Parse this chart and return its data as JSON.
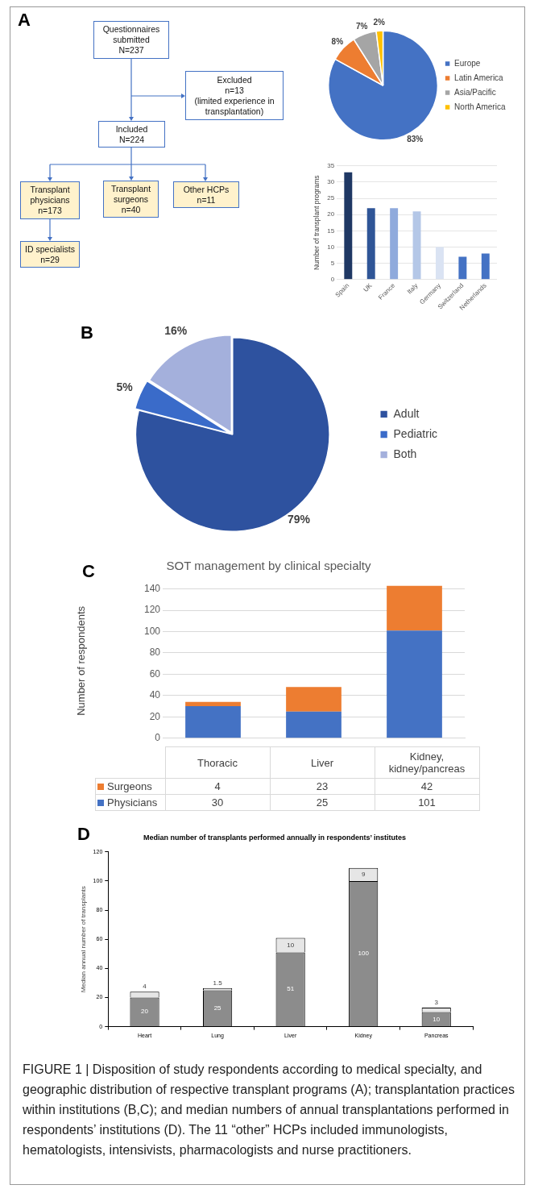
{
  "chart_data": [
    {
      "type": "other",
      "annotations": [
        "A",
        "Questionnaires\nsubmitted\nN=237",
        "Excluded\nn=13\n(limited experience in\ntransplantation)",
        "Included\nN=224",
        "Transplant\nphysicians\nn=173",
        "Transplant\nsurgeons\nn=40",
        "Other HCPs\nn=11",
        "ID specialists\nn=29"
      ]
    },
    {
      "type": "pie",
      "categories": [
        "Europe",
        "Latin America",
        "Asia/Pacific",
        "North America"
      ],
      "values": [
        83,
        8,
        7,
        2
      ],
      "colors": [
        "#4472c4",
        "#ed7d31",
        "#a5a5a5",
        "#ffc000"
      ],
      "value_labels": [
        "83%",
        "8%",
        "7%",
        "2%"
      ],
      "legend": "right"
    },
    {
      "type": "bar",
      "categories": [
        "Spain",
        "UK",
        "France",
        "Italy",
        "Germany",
        "Switzerland",
        "Netherlands"
      ],
      "values": [
        33,
        22,
        22,
        21,
        10,
        7,
        8
      ],
      "colors": [
        "#1f3864",
        "#2f5597",
        "#8faadc",
        "#b4c7e7",
        "#dae3f3",
        "#4472c4",
        "#4472c4"
      ],
      "ylabel": "Number of transplant programs",
      "ylim": [
        0,
        35
      ],
      "yticks": [
        0,
        5,
        10,
        15,
        20,
        25,
        30,
        35
      ],
      "grid": "y"
    },
    {
      "type": "pie",
      "categories": [
        "Adult",
        "Pediatric",
        "Both"
      ],
      "values": [
        79,
        5,
        16
      ],
      "colors": [
        "#2e529f",
        "#3a6bc9",
        "#a4b0dc"
      ],
      "value_labels": [
        "79%",
        "5%",
        "16%"
      ],
      "legend": "right",
      "annotations": [
        "B"
      ]
    },
    {
      "type": "bar",
      "stacked": true,
      "title": "SOT management by clinical specialty",
      "ylabel": "Number of respondents",
      "categories": [
        "Thoracic",
        "Liver",
        "Kidney, kidney/pancreas"
      ],
      "series": [
        {
          "name": "Physicians",
          "color": "#4472c4",
          "values": [
            30,
            25,
            101
          ]
        },
        {
          "name": "Surgeons",
          "color": "#ed7d31",
          "values": [
            4,
            23,
            42
          ]
        }
      ],
      "ylim": [
        0,
        145
      ],
      "yticks": [
        0,
        20,
        40,
        60,
        80,
        100,
        120,
        140
      ],
      "grid": "y",
      "legend": "bottom",
      "data_labels": true,
      "annotations": [
        "C"
      ]
    },
    {
      "type": "bar",
      "stacked": true,
      "title": "Median number of transplants performed annually in respondents’ institutes",
      "ylabel": "Median annual number of transplants",
      "categories": [
        "Heart",
        "Lung",
        "Liver",
        "Kidney",
        "Pancreas"
      ],
      "series": [
        {
          "color": "#8c8c8c",
          "values": [
            20,
            25,
            51,
            100,
            10
          ]
        },
        {
          "color": "#e6e6e6",
          "values": [
            4,
            1.5,
            10,
            9,
            3
          ]
        }
      ],
      "ylim": [
        0,
        120
      ],
      "yticks": [
        0,
        20,
        40,
        60,
        80,
        100,
        120
      ],
      "data_labels": true,
      "annotations": [
        "D",
        "FIGURE 1 | Disposition of study respondents according to medical specialty, and geographic distribution of respective transplant programs (A); transplantation practices within institutions (B,C); and median numbers of annual transplantations performed in respondents’ institutions (D). The 11 “other” HCPs included immunologists, hematologists, intensivists, pharmacologists and nurse practitioners."
      ]
    }
  ]
}
